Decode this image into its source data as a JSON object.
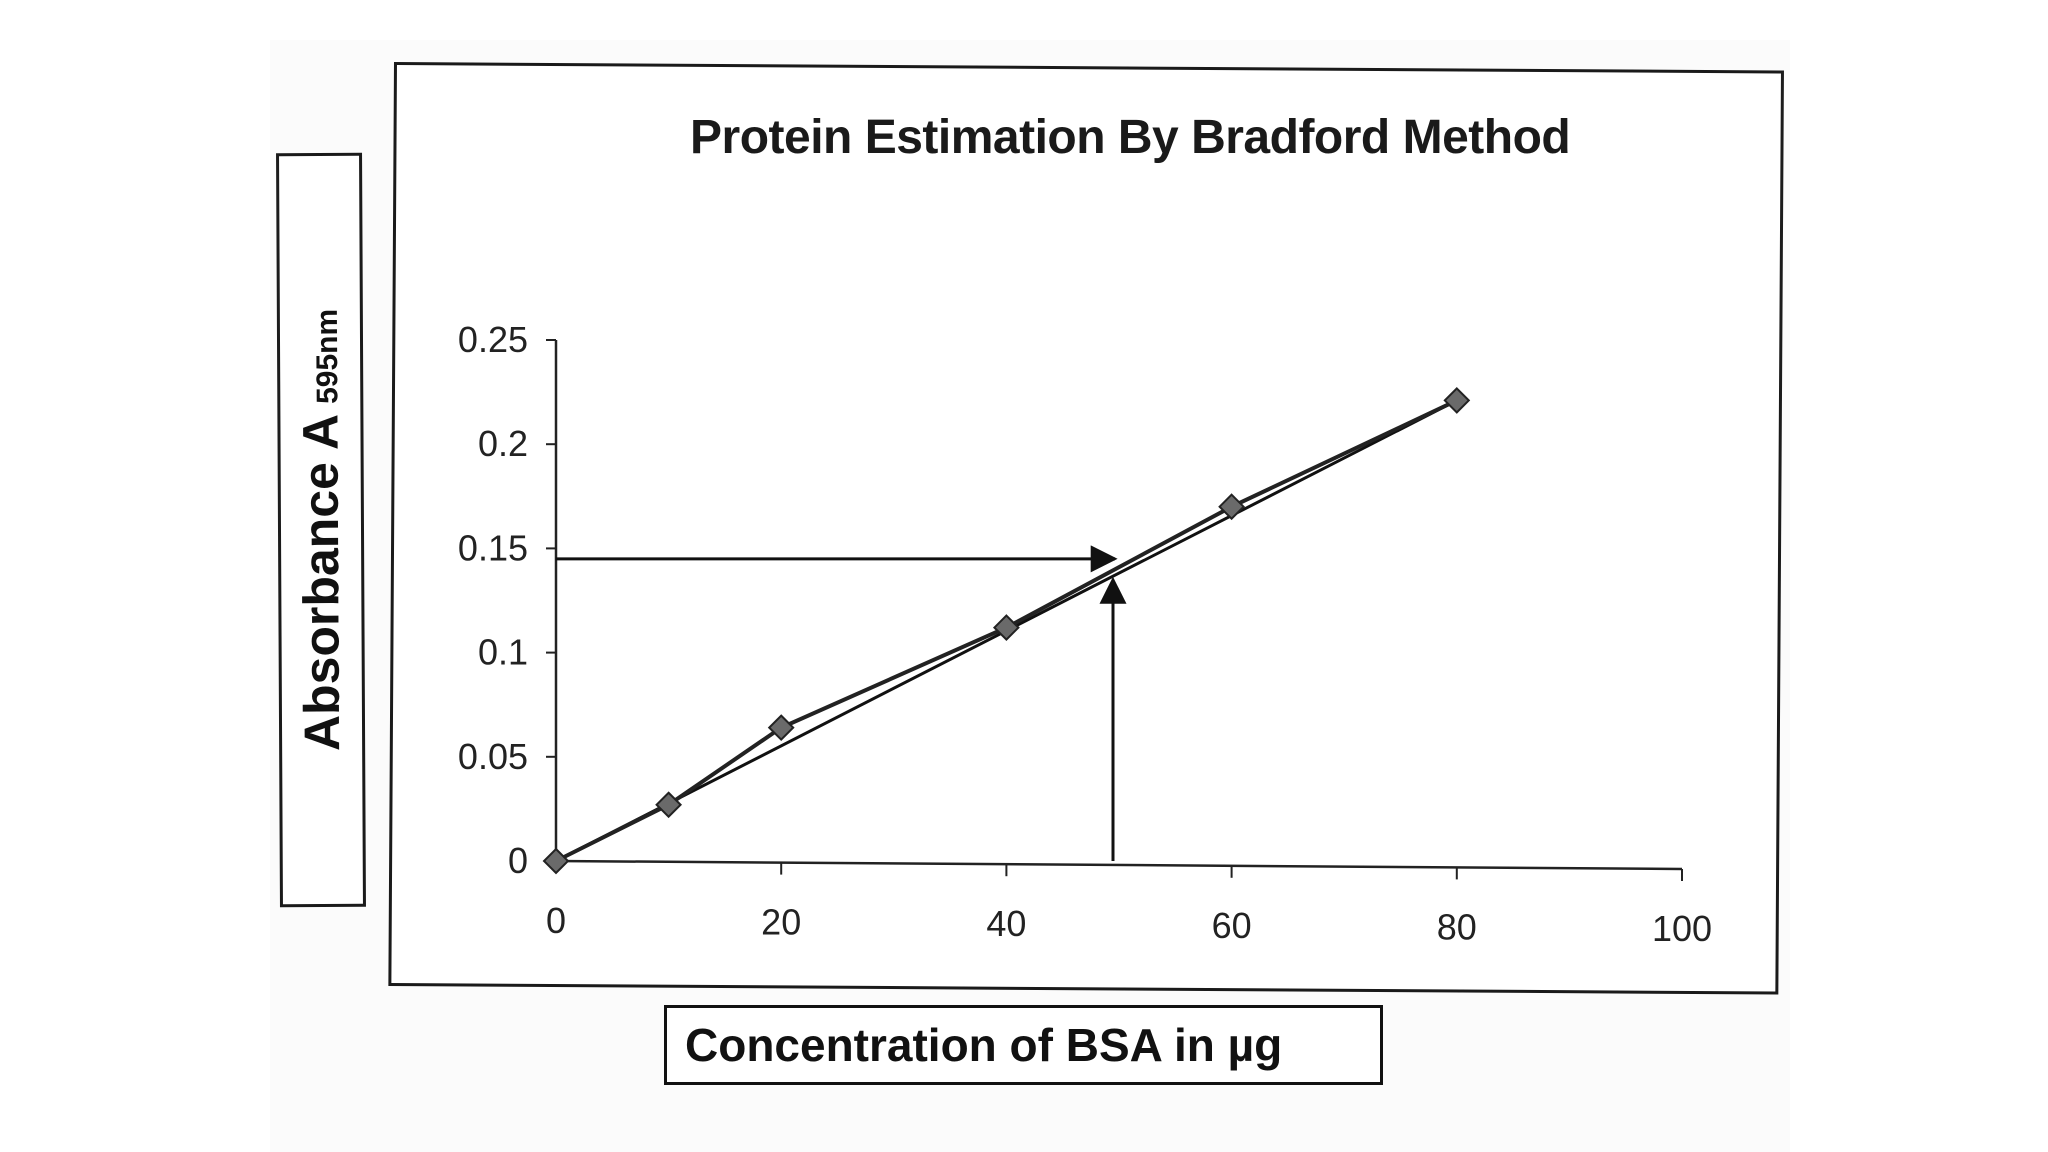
{
  "chart_data": {
    "type": "line",
    "title": "Protein Estimation By Bradford Method",
    "ylabel": "Absorbance A",
    "ylabel_subscript": "595nm",
    "xlabel": "Concentration of BSA in µg",
    "xlim": [
      0,
      100
    ],
    "ylim": [
      0,
      0.25
    ],
    "x_ticks": [
      "0",
      "20",
      "40",
      "60",
      "80",
      "100"
    ],
    "y_ticks": [
      "0",
      "0.05",
      "0.1",
      "0.15",
      "0.2",
      "0.25"
    ],
    "grid": false,
    "legend": "none",
    "series": [
      {
        "x": [
          0,
          10,
          20,
          40,
          60,
          80
        ],
        "y": [
          0,
          0.027,
          0.064,
          0.112,
          0.17,
          0.221
        ],
        "marker": "diamond",
        "color": "#222222"
      }
    ],
    "trendline": {
      "x": [
        0,
        80
      ],
      "y": [
        0,
        0.221
      ]
    },
    "annotation_arrows": [
      {
        "direction": "horizontal",
        "from_x": 0,
        "to_x": 50,
        "y": 0.145
      },
      {
        "direction": "vertical",
        "x": 50,
        "from_y": 0,
        "to_y": 0.137
      }
    ]
  }
}
